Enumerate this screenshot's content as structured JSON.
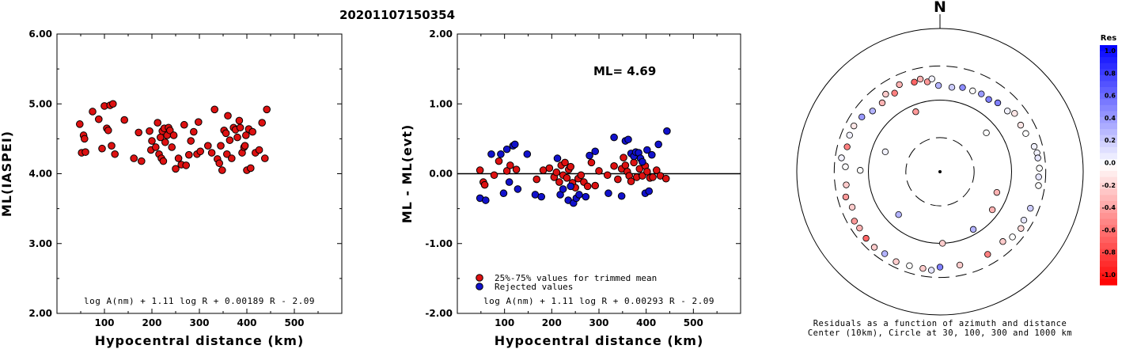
{
  "figure_title": "20201107150354",
  "chart_data": [
    {
      "type": "scatter",
      "name": "ml-vs-distance",
      "xlabel": "Hypocentral distance (km)",
      "ylabel": "ML(IASPEI)",
      "xlim": [
        0,
        600
      ],
      "ylim": [
        2.0,
        6.0
      ],
      "x_ticks": [
        "100",
        "200",
        "300",
        "400",
        "500"
      ],
      "y_ticks": [
        "2.00",
        "3.00",
        "4.00",
        "5.00",
        "6.00"
      ],
      "formula": "log A(nm) + 1.11 log R + 0.00189 R - 2.09",
      "point_color": "#dd1111",
      "points": [
        [
          48,
          4.71
        ],
        [
          52,
          4.3
        ],
        [
          56,
          4.55
        ],
        [
          58,
          4.5
        ],
        [
          60,
          4.31
        ],
        [
          75,
          4.89
        ],
        [
          88,
          4.78
        ],
        [
          95,
          4.36
        ],
        [
          100,
          4.97
        ],
        [
          105,
          4.65
        ],
        [
          108,
          4.62
        ],
        [
          112,
          4.98
        ],
        [
          115,
          4.4
        ],
        [
          118,
          5.0
        ],
        [
          122,
          4.28
        ],
        [
          142,
          4.77
        ],
        [
          162,
          4.22
        ],
        [
          172,
          4.59
        ],
        [
          178,
          4.18
        ],
        [
          195,
          4.61
        ],
        [
          198,
          4.34
        ],
        [
          200,
          4.47
        ],
        [
          208,
          4.38
        ],
        [
          212,
          4.73
        ],
        [
          215,
          4.28
        ],
        [
          218,
          4.52
        ],
        [
          220,
          4.22
        ],
        [
          222,
          4.61
        ],
        [
          224,
          4.18
        ],
        [
          226,
          4.65
        ],
        [
          228,
          4.45
        ],
        [
          232,
          4.55
        ],
        [
          235,
          4.66
        ],
        [
          238,
          4.62
        ],
        [
          242,
          4.38
        ],
        [
          246,
          4.55
        ],
        [
          250,
          4.07
        ],
        [
          256,
          4.22
        ],
        [
          262,
          4.13
        ],
        [
          268,
          4.7
        ],
        [
          272,
          4.12
        ],
        [
          278,
          4.27
        ],
        [
          282,
          4.47
        ],
        [
          288,
          4.6
        ],
        [
          295,
          4.28
        ],
        [
          298,
          4.74
        ],
        [
          302,
          4.32
        ],
        [
          318,
          4.4
        ],
        [
          326,
          4.3
        ],
        [
          332,
          4.92
        ],
        [
          338,
          4.21
        ],
        [
          342,
          4.15
        ],
        [
          345,
          4.4
        ],
        [
          348,
          4.05
        ],
        [
          352,
          4.62
        ],
        [
          356,
          4.58
        ],
        [
          358,
          4.28
        ],
        [
          360,
          4.83
        ],
        [
          364,
          4.48
        ],
        [
          368,
          4.22
        ],
        [
          372,
          4.66
        ],
        [
          376,
          4.63
        ],
        [
          380,
          4.52
        ],
        [
          384,
          4.76
        ],
        [
          386,
          4.66
        ],
        [
          390,
          4.3
        ],
        [
          394,
          4.38
        ],
        [
          396,
          4.4
        ],
        [
          398,
          4.55
        ],
        [
          400,
          4.05
        ],
        [
          404,
          4.64
        ],
        [
          408,
          4.08
        ],
        [
          412,
          4.6
        ],
        [
          418,
          4.3
        ],
        [
          426,
          4.34
        ],
        [
          432,
          4.73
        ],
        [
          438,
          4.22
        ],
        [
          442,
          4.92
        ]
      ]
    },
    {
      "type": "scatter",
      "name": "residual-vs-distance",
      "xlabel": "Hypocentral distance (km)",
      "ylabel": "ML - ML(evt)",
      "xlim": [
        0,
        600
      ],
      "ylim": [
        -2.0,
        2.0
      ],
      "x_ticks": [
        "100",
        "200",
        "300",
        "400",
        "500"
      ],
      "y_ticks": [
        "-2.00",
        "-1.00",
        "0.00",
        "1.00",
        "2.00"
      ],
      "annotation": "ML= 4.69",
      "formula": "log A(nm) + 1.11 log R + 0.00293 R - 2.09",
      "legend": [
        {
          "label": "25%-75% values for trimmed mean",
          "color": "#dd1111"
        },
        {
          "label": "Rejected values",
          "color": "#1111cc"
        }
      ],
      "series": [
        {
          "color": "#dd1111",
          "points": [
            [
              48,
              0.05
            ],
            [
              55,
              -0.12
            ],
            [
              58,
              -0.16
            ],
            [
              78,
              -0.02
            ],
            [
              88,
              0.18
            ],
            [
              105,
              0.04
            ],
            [
              112,
              0.12
            ],
            [
              125,
              0.06
            ],
            [
              168,
              -0.08
            ],
            [
              182,
              0.05
            ],
            [
              195,
              0.08
            ],
            [
              205,
              -0.05
            ],
            [
              210,
              0.02
            ],
            [
              216,
              -0.12
            ],
            [
              220,
              0.12
            ],
            [
              224,
              -0.02
            ],
            [
              228,
              0.16
            ],
            [
              232,
              -0.06
            ],
            [
              236,
              0.06
            ],
            [
              240,
              0.1
            ],
            [
              244,
              -0.13
            ],
            [
              250,
              -0.2
            ],
            [
              256,
              -0.07
            ],
            [
              262,
              -0.02
            ],
            [
              268,
              -0.12
            ],
            [
              276,
              -0.18
            ],
            [
              284,
              0.16
            ],
            [
              292,
              -0.17
            ],
            [
              300,
              0.04
            ],
            [
              318,
              -0.02
            ],
            [
              332,
              0.11
            ],
            [
              340,
              -0.08
            ],
            [
              348,
              0.07
            ],
            [
              352,
              0.23
            ],
            [
              356,
              0.12
            ],
            [
              360,
              0.03
            ],
            [
              364,
              -0.03
            ],
            [
              368,
              -0.11
            ],
            [
              374,
              0.16
            ],
            [
              380,
              -0.05
            ],
            [
              386,
              0.07
            ],
            [
              392,
              -0.03
            ],
            [
              398,
              0.11
            ],
            [
              402,
              0.03
            ],
            [
              408,
              -0.06
            ],
            [
              414,
              -0.05
            ],
            [
              422,
              0.05
            ],
            [
              430,
              -0.03
            ],
            [
              442,
              -0.07
            ]
          ]
        },
        {
          "color": "#1111cc",
          "points": [
            [
              48,
              -0.35
            ],
            [
              60,
              -0.38
            ],
            [
              72,
              0.28
            ],
            [
              92,
              0.28
            ],
            [
              98,
              -0.28
            ],
            [
              105,
              0.35
            ],
            [
              110,
              -0.12
            ],
            [
              118,
              0.4
            ],
            [
              122,
              0.42
            ],
            [
              128,
              -0.22
            ],
            [
              148,
              0.28
            ],
            [
              165,
              -0.3
            ],
            [
              178,
              -0.33
            ],
            [
              212,
              0.22
            ],
            [
              218,
              -0.3
            ],
            [
              224,
              -0.22
            ],
            [
              235,
              -0.38
            ],
            [
              240,
              -0.18
            ],
            [
              246,
              -0.42
            ],
            [
              252,
              -0.35
            ],
            [
              258,
              -0.3
            ],
            [
              272,
              -0.33
            ],
            [
              280,
              0.26
            ],
            [
              292,
              0.32
            ],
            [
              320,
              -0.28
            ],
            [
              332,
              0.52
            ],
            [
              348,
              -0.32
            ],
            [
              356,
              0.47
            ],
            [
              362,
              0.49
            ],
            [
              368,
              0.29
            ],
            [
              374,
              0.25
            ],
            [
              378,
              0.31
            ],
            [
              384,
              0.3
            ],
            [
              388,
              0.22
            ],
            [
              392,
              0.17
            ],
            [
              398,
              -0.28
            ],
            [
              402,
              0.34
            ],
            [
              406,
              -0.25
            ],
            [
              412,
              0.27
            ],
            [
              426,
              0.42
            ],
            [
              444,
              0.61
            ]
          ]
        }
      ]
    },
    {
      "type": "scatter",
      "name": "azimuthal-residual-map",
      "north_label": "N",
      "caption_line1": "Residuals as a function of azimuth and distance",
      "caption_line2": "Center (10km), Circle at 30, 100, 300 and 1000 km",
      "colorbar_title": "Res",
      "colorbar_ticks": [
        "1.0",
        "0.8",
        "0.6",
        "0.4",
        "0.2",
        "0.0",
        "-0.2",
        "-0.4",
        "-0.6",
        "-0.8",
        "-1.0"
      ],
      "colorbar_range": [
        -1.0,
        1.0
      ],
      "rings": [
        {
          "km": 30,
          "style": "dashed"
        },
        {
          "km": 100,
          "style": "solid"
        },
        {
          "km": 300,
          "style": "dashed"
        },
        {
          "km": 1000,
          "style": "solid"
        }
      ],
      "stations": [
        [
          -1,
          160,
          0.3
        ],
        [
          8,
          155,
          0.2
        ],
        [
          15,
          165,
          0.45
        ],
        [
          22,
          165,
          0.0
        ],
        [
          28,
          170,
          0.4
        ],
        [
          34,
          165,
          0.5
        ],
        [
          40,
          180,
          0.5
        ],
        [
          48,
          185,
          0.05
        ],
        [
          52,
          210,
          -0.1
        ],
        [
          60,
          200,
          -0.1
        ],
        [
          66,
          205,
          0.0
        ],
        [
          75,
          230,
          0.05
        ],
        [
          79,
          240,
          0.05
        ],
        [
          82,
          240,
          0.1
        ],
        [
          88,
          245,
          0.0
        ],
        [
          93,
          240,
          0.1
        ],
        [
          98,
          245,
          0.0
        ],
        [
          112,
          230,
          0.2
        ],
        [
          120,
          225,
          0.1
        ],
        [
          125,
          240,
          -0.15
        ],
        [
          132,
          230,
          0.0
        ],
        [
          138,
          205,
          -0.2
        ],
        [
          150,
          215,
          -0.5
        ],
        [
          168,
          215,
          -0.2
        ],
        [
          178,
          100,
          -0.2
        ],
        [
          180,
          215,
          0.5
        ],
        [
          185,
          240,
          0.1
        ],
        [
          190,
          235,
          -0.2
        ],
        [
          198,
          240,
          0.0
        ],
        [
          206,
          250,
          -0.2
        ],
        [
          214,
          240,
          0.3
        ],
        [
          221,
          250,
          -0.2
        ],
        [
          228,
          245,
          -0.6
        ],
        [
          235,
          235,
          -0.3
        ],
        [
          240,
          240,
          -0.4
        ],
        [
          248,
          210,
          -0.2
        ],
        [
          255,
          230,
          -0.4
        ],
        [
          262,
          210,
          -0.2
        ],
        [
          271,
          130,
          0.0
        ],
        [
          273,
          210,
          0.0
        ],
        [
          278,
          245,
          0.05
        ],
        [
          285,
          220,
          -0.5
        ],
        [
          292,
          230,
          0.05
        ],
        [
          298,
          230,
          -0.1
        ],
        [
          305,
          215,
          0.4
        ],
        [
          312,
          185,
          0.3
        ],
        [
          320,
          180,
          -0.3
        ],
        [
          325,
          210,
          -0.2
        ],
        [
          330,
          185,
          -0.5
        ],
        [
          335,
          220,
          -0.3
        ],
        [
          344,
          200,
          -0.6
        ],
        [
          348,
          210,
          -0.3
        ],
        [
          352,
          185,
          -0.4
        ],
        [
          338,
          80,
          -0.4
        ],
        [
          50,
          70,
          0.0
        ],
        [
          110,
          70,
          -0.3
        ],
        [
          126,
          80,
          -0.3
        ],
        [
          150,
          85,
          0.3
        ],
        [
          224,
          68,
          0.3
        ],
        [
          290,
          65,
          0.05
        ],
        [
          355,
          200,
          0.05
        ]
      ]
    }
  ]
}
